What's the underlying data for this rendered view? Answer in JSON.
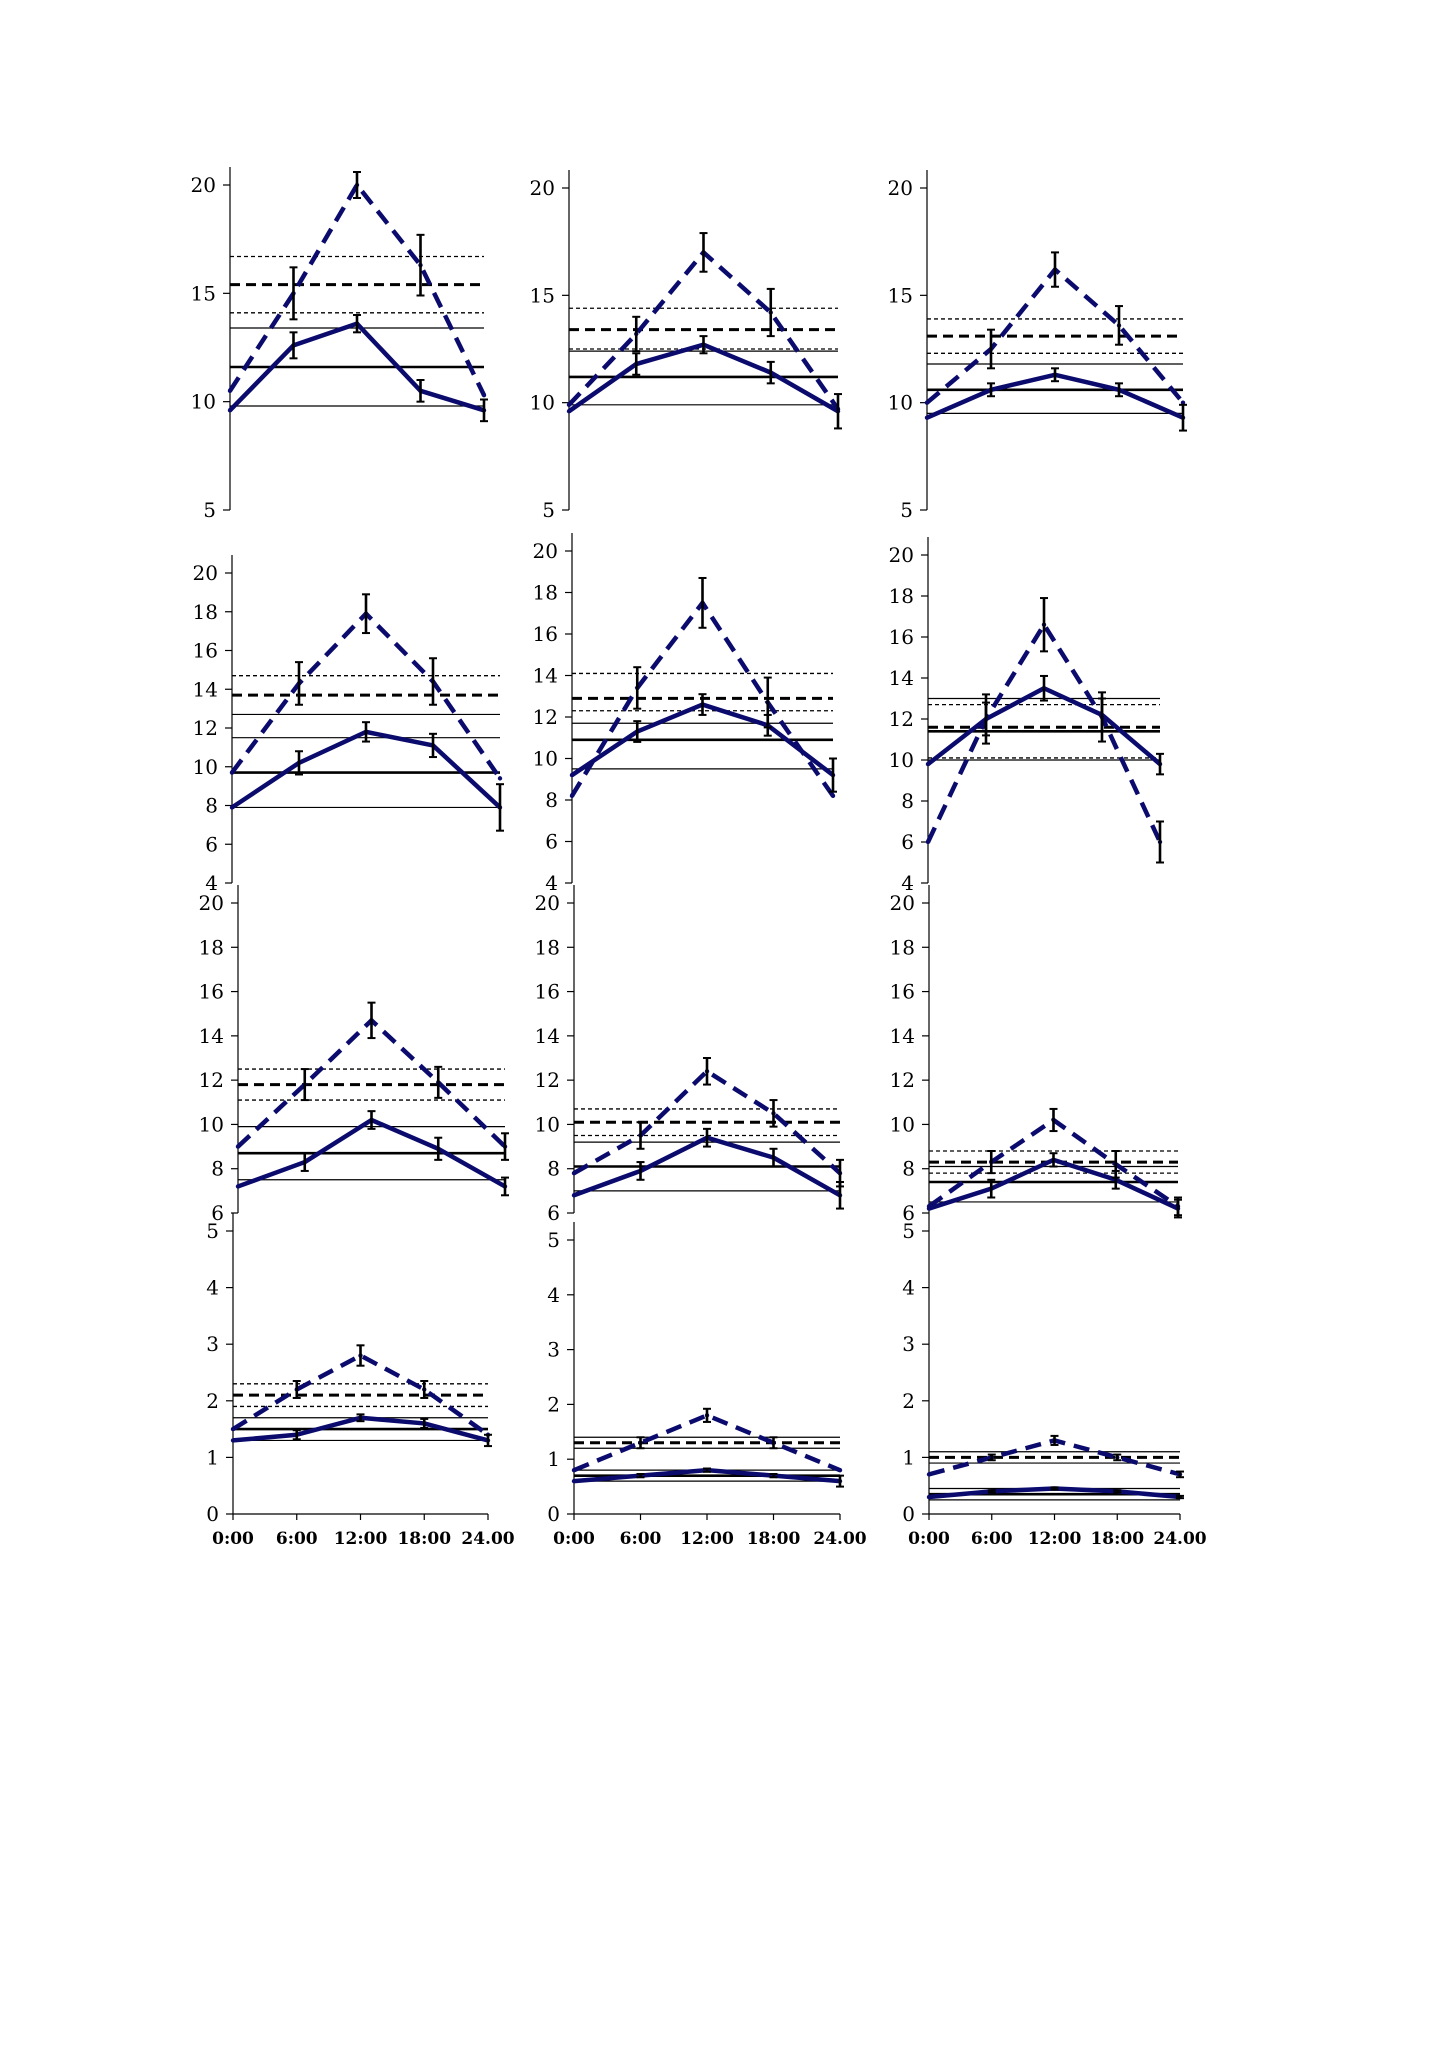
{
  "chart_data": [
    {
      "type": "line",
      "x_ticks": [
        "0:00",
        "6:00",
        "12:00",
        "18:00",
        "24.00"
      ],
      "ylim": [
        5,
        20
      ],
      "yticks": [
        5,
        10,
        15,
        20
      ],
      "series": [
        {
          "style": "dashed",
          "color": "#0b0b6e",
          "values": [
            10.5,
            15.0,
            20.0,
            16.3,
            10.3
          ],
          "err": [
            0,
            1.2,
            0.6,
            1.4,
            0
          ]
        },
        {
          "style": "solid",
          "color": "#0b0b6e",
          "values": [
            9.6,
            12.6,
            13.6,
            10.5,
            9.6
          ],
          "err": [
            0,
            0.6,
            0.4,
            0.5,
            0.5
          ]
        }
      ],
      "ref_lines": [
        {
          "y": 16.7,
          "style": "thin-dashed"
        },
        {
          "y": 15.4,
          "style": "thick-dashed"
        },
        {
          "y": 14.1,
          "style": "thin-dashed"
        },
        {
          "y": 13.4,
          "style": "thin-solid"
        },
        {
          "y": 11.6,
          "style": "thick-solid"
        },
        {
          "y": 9.8,
          "style": "thin-solid"
        }
      ]
    },
    {
      "type": "line",
      "x_ticks": [
        "0:00",
        "6:00",
        "12:00",
        "18:00",
        "24.00"
      ],
      "ylim": [
        5,
        20
      ],
      "yticks": [
        5,
        10,
        15,
        20
      ],
      "series": [
        {
          "style": "dashed",
          "color": "#0b0b6e",
          "values": [
            9.9,
            13.2,
            17.0,
            14.2,
            9.7
          ],
          "err": [
            0,
            0.8,
            0.9,
            1.1,
            0
          ]
        },
        {
          "style": "solid",
          "color": "#0b0b6e",
          "values": [
            9.6,
            11.8,
            12.7,
            11.4,
            9.6
          ],
          "err": [
            0,
            0.5,
            0.4,
            0.5,
            0.8
          ]
        }
      ],
      "ref_lines": [
        {
          "y": 14.4,
          "style": "thin-dashed"
        },
        {
          "y": 13.4,
          "style": "thick-dashed"
        },
        {
          "y": 12.5,
          "style": "thin-dashed"
        },
        {
          "y": 12.4,
          "style": "thin-solid"
        },
        {
          "y": 11.2,
          "style": "thick-solid"
        },
        {
          "y": 9.9,
          "style": "thin-solid"
        }
      ]
    },
    {
      "type": "line",
      "x_ticks": [
        "0:00",
        "6:00",
        "12:00",
        "18:00",
        "24.00"
      ],
      "ylim": [
        5,
        20
      ],
      "yticks": [
        5,
        10,
        15,
        20
      ],
      "series": [
        {
          "style": "dashed",
          "color": "#0b0b6e",
          "values": [
            10.0,
            12.5,
            16.2,
            13.6,
            10.0
          ],
          "err": [
            0,
            0.9,
            0.8,
            0.9,
            0
          ]
        },
        {
          "style": "solid",
          "color": "#0b0b6e",
          "values": [
            9.3,
            10.6,
            11.3,
            10.6,
            9.3
          ],
          "err": [
            0,
            0.3,
            0.3,
            0.3,
            0.6
          ]
        }
      ],
      "ref_lines": [
        {
          "y": 13.9,
          "style": "thin-dashed"
        },
        {
          "y": 13.1,
          "style": "thick-dashed"
        },
        {
          "y": 12.3,
          "style": "thin-dashed"
        },
        {
          "y": 11.8,
          "style": "thin-solid"
        },
        {
          "y": 10.6,
          "style": "thick-solid"
        },
        {
          "y": 9.5,
          "style": "thin-solid"
        }
      ]
    },
    {
      "type": "line",
      "x_ticks": [
        "0:00",
        "6:00",
        "12:00",
        "18:00",
        "24.00"
      ],
      "ylim": [
        4,
        20
      ],
      "yticks": [
        4,
        6,
        8,
        10,
        12,
        14,
        16,
        18,
        20
      ],
      "series": [
        {
          "style": "dashed",
          "color": "#0b0b6e",
          "values": [
            9.7,
            14.3,
            17.9,
            14.4,
            9.4
          ],
          "err": [
            0,
            1.1,
            1.0,
            1.2,
            0
          ]
        },
        {
          "style": "solid",
          "color": "#0b0b6e",
          "values": [
            7.9,
            10.2,
            11.8,
            11.1,
            7.9
          ],
          "err": [
            0,
            0.6,
            0.5,
            0.6,
            1.2
          ]
        }
      ],
      "ref_lines": [
        {
          "y": 14.7,
          "style": "thin-dashed"
        },
        {
          "y": 13.7,
          "style": "thick-dashed"
        },
        {
          "y": 12.7,
          "style": "thin-solid"
        },
        {
          "y": 11.5,
          "style": "thin-solid"
        },
        {
          "y": 9.7,
          "style": "thick-solid"
        },
        {
          "y": 7.9,
          "style": "thin-solid"
        }
      ]
    },
    {
      "type": "line",
      "x_ticks": [
        "0:00",
        "6:00",
        "12:00",
        "18:00",
        "24.00"
      ],
      "ylim": [
        4,
        20
      ],
      "yticks": [
        4,
        6,
        8,
        10,
        12,
        14,
        16,
        18,
        20
      ],
      "series": [
        {
          "style": "dashed",
          "color": "#0b0b6e",
          "values": [
            8.2,
            13.4,
            17.5,
            12.7,
            8.2
          ],
          "err": [
            0,
            1.0,
            1.2,
            1.2,
            0
          ]
        },
        {
          "style": "solid",
          "color": "#0b0b6e",
          "values": [
            9.2,
            11.3,
            12.6,
            11.6,
            9.2
          ],
          "err": [
            0,
            0.5,
            0.5,
            0.5,
            0.8
          ]
        }
      ],
      "ref_lines": [
        {
          "y": 14.1,
          "style": "thin-dashed"
        },
        {
          "y": 12.9,
          "style": "thick-dashed"
        },
        {
          "y": 12.3,
          "style": "thin-dashed"
        },
        {
          "y": 11.7,
          "style": "thin-solid"
        },
        {
          "y": 10.9,
          "style": "thick-solid"
        },
        {
          "y": 9.5,
          "style": "thin-solid"
        }
      ]
    },
    {
      "type": "line",
      "x_ticks": [
        "0:00",
        "6:00",
        "12:00",
        "18:00",
        "24.00"
      ],
      "ylim": [
        4,
        20
      ],
      "yticks": [
        4,
        6,
        8,
        10,
        12,
        14,
        16,
        18,
        20
      ],
      "series": [
        {
          "style": "dashed",
          "color": "#0b0b6e",
          "values": [
            6.0,
            12.0,
            16.6,
            12.1,
            6.0
          ],
          "err": [
            0,
            1.2,
            1.3,
            1.2,
            1.0
          ]
        },
        {
          "style": "solid",
          "color": "#0b0b6e",
          "values": [
            9.8,
            12.0,
            13.5,
            12.2,
            9.8
          ],
          "err": [
            0,
            0.8,
            0.6,
            0.8,
            0.5
          ]
        }
      ],
      "ref_lines": [
        {
          "y": 13.0,
          "style": "thin-solid"
        },
        {
          "y": 12.7,
          "style": "thin-dashed"
        },
        {
          "y": 11.6,
          "style": "thick-dashed"
        },
        {
          "y": 11.4,
          "style": "thick-solid"
        },
        {
          "y": 10.1,
          "style": "thin-dashed"
        },
        {
          "y": 10.0,
          "style": "thin-solid"
        }
      ]
    },
    {
      "type": "line",
      "x_ticks": [
        "0:00",
        "6:00",
        "12:00",
        "18:00",
        "24.00"
      ],
      "ylim": [
        6,
        20
      ],
      "yticks": [
        6,
        8,
        10,
        12,
        14,
        16,
        18,
        20
      ],
      "series": [
        {
          "style": "dashed",
          "color": "#0b0b6e",
          "values": [
            9.0,
            11.8,
            14.7,
            11.9,
            9.0
          ],
          "err": [
            0,
            0.7,
            0.8,
            0.7,
            0.6
          ]
        },
        {
          "style": "solid",
          "color": "#0b0b6e",
          "values": [
            7.2,
            8.3,
            10.2,
            8.9,
            7.2
          ],
          "err": [
            0,
            0.4,
            0.4,
            0.5,
            0.4
          ]
        }
      ],
      "ref_lines": [
        {
          "y": 12.5,
          "style": "thin-dashed"
        },
        {
          "y": 11.8,
          "style": "thick-dashed"
        },
        {
          "y": 11.1,
          "style": "thin-dashed"
        },
        {
          "y": 9.9,
          "style": "thin-solid"
        },
        {
          "y": 8.7,
          "style": "thick-solid"
        },
        {
          "y": 7.5,
          "style": "thin-solid"
        }
      ]
    },
    {
      "type": "line",
      "x_ticks": [
        "0:00",
        "6:00",
        "12:00",
        "18:00",
        "24.00"
      ],
      "ylim": [
        6,
        20
      ],
      "yticks": [
        6,
        8,
        10,
        12,
        14,
        16,
        18,
        20
      ],
      "series": [
        {
          "style": "dashed",
          "color": "#0b0b6e",
          "values": [
            7.8,
            9.5,
            12.4,
            10.5,
            7.8
          ],
          "err": [
            0,
            0.6,
            0.6,
            0.6,
            0.6
          ]
        },
        {
          "style": "solid",
          "color": "#0b0b6e",
          "values": [
            6.8,
            7.9,
            9.4,
            8.5,
            6.8
          ],
          "err": [
            0,
            0.4,
            0.4,
            0.4,
            0.6
          ]
        }
      ],
      "ref_lines": [
        {
          "y": 10.7,
          "style": "thin-dashed"
        },
        {
          "y": 10.1,
          "style": "thick-dashed"
        },
        {
          "y": 9.5,
          "style": "thin-dashed"
        },
        {
          "y": 9.2,
          "style": "thin-solid"
        },
        {
          "y": 8.1,
          "style": "thick-solid"
        },
        {
          "y": 7.0,
          "style": "thin-solid"
        }
      ]
    },
    {
      "type": "line",
      "x_ticks": [
        "0:00",
        "6:00",
        "12:00",
        "18:00",
        "24.00"
      ],
      "ylim": [
        6,
        20
      ],
      "yticks": [
        6,
        8,
        10,
        12,
        14,
        16,
        18,
        20
      ],
      "series": [
        {
          "style": "dashed",
          "color": "#0b0b6e",
          "values": [
            6.3,
            8.3,
            10.2,
            8.2,
            6.3
          ],
          "err": [
            0,
            0.5,
            0.5,
            0.6,
            0.4
          ]
        },
        {
          "style": "solid",
          "color": "#0b0b6e",
          "values": [
            6.2,
            7.1,
            8.4,
            7.5,
            6.2
          ],
          "err": [
            0,
            0.4,
            0.3,
            0.4,
            0.4
          ]
        }
      ],
      "ref_lines": [
        {
          "y": 8.8,
          "style": "thin-dashed"
        },
        {
          "y": 8.3,
          "style": "thick-dashed"
        },
        {
          "y": 8.1,
          "style": "thin-solid"
        },
        {
          "y": 7.8,
          "style": "thin-dashed"
        },
        {
          "y": 7.4,
          "style": "thick-solid"
        },
        {
          "y": 6.5,
          "style": "thin-solid"
        }
      ]
    },
    {
      "type": "line",
      "x_ticks": [
        "0:00",
        "6:00",
        "12:00",
        "18:00",
        "24.00"
      ],
      "ylim": [
        0,
        5
      ],
      "yticks": [
        0,
        1,
        2,
        3,
        4,
        5
      ],
      "series": [
        {
          "style": "dashed",
          "color": "#0b0b6e",
          "values": [
            1.5,
            2.2,
            2.8,
            2.2,
            1.4
          ],
          "err": [
            0,
            0.15,
            0.18,
            0.15,
            0
          ]
        },
        {
          "style": "solid",
          "color": "#0b0b6e",
          "values": [
            1.3,
            1.4,
            1.7,
            1.6,
            1.3
          ],
          "err": [
            0,
            0.08,
            0.06,
            0.08,
            0.1
          ]
        }
      ],
      "ref_lines": [
        {
          "y": 2.3,
          "style": "thin-dashed"
        },
        {
          "y": 2.1,
          "style": "thick-dashed"
        },
        {
          "y": 1.9,
          "style": "thin-dashed"
        },
        {
          "y": 1.7,
          "style": "thin-solid"
        },
        {
          "y": 1.5,
          "style": "thick-solid"
        },
        {
          "y": 1.3,
          "style": "thin-solid"
        }
      ]
    },
    {
      "type": "line",
      "x_ticks": [
        "0:00",
        "6:00",
        "12:00",
        "18:00",
        "24.00"
      ],
      "ylim": [
        0,
        5
      ],
      "yticks": [
        0,
        1,
        2,
        3,
        4,
        5
      ],
      "series": [
        {
          "style": "dashed",
          "color": "#0b0b6e",
          "values": [
            0.8,
            1.3,
            1.8,
            1.3,
            0.8
          ],
          "err": [
            0,
            0.1,
            0.12,
            0.1,
            0
          ]
        },
        {
          "style": "solid",
          "color": "#0b0b6e",
          "values": [
            0.6,
            0.7,
            0.8,
            0.7,
            0.6
          ],
          "err": [
            0,
            0.03,
            0.03,
            0.03,
            0.1
          ]
        }
      ],
      "ref_lines": [
        {
          "y": 1.4,
          "style": "thin-solid"
        },
        {
          "y": 1.3,
          "style": "thick-dashed"
        },
        {
          "y": 1.2,
          "style": "thin-solid"
        },
        {
          "y": 0.8,
          "style": "thin-solid"
        },
        {
          "y": 0.7,
          "style": "thick-solid"
        },
        {
          "y": 0.6,
          "style": "thin-solid"
        }
      ]
    },
    {
      "type": "line",
      "x_ticks": [
        "0:00",
        "6:00",
        "12:00",
        "18:00",
        "24.00"
      ],
      "ylim": [
        0,
        5
      ],
      "yticks": [
        0,
        1,
        2,
        3,
        4,
        5
      ],
      "series": [
        {
          "style": "dashed",
          "color": "#0b0b6e",
          "values": [
            0.7,
            1.0,
            1.3,
            1.0,
            0.7
          ],
          "err": [
            0,
            0.05,
            0.08,
            0.05,
            0.05
          ]
        },
        {
          "style": "solid",
          "color": "#0b0b6e",
          "values": [
            0.3,
            0.4,
            0.45,
            0.4,
            0.3
          ],
          "err": [
            0,
            0.02,
            0.02,
            0.02,
            0.02
          ]
        }
      ],
      "ref_lines": [
        {
          "y": 1.1,
          "style": "thin-solid"
        },
        {
          "y": 1.0,
          "style": "thick-dashed"
        },
        {
          "y": 0.9,
          "style": "thin-solid"
        },
        {
          "y": 0.45,
          "style": "thin-solid"
        },
        {
          "y": 0.35,
          "style": "thick-solid"
        },
        {
          "y": 0.25,
          "style": "thin-solid"
        }
      ]
    }
  ]
}
